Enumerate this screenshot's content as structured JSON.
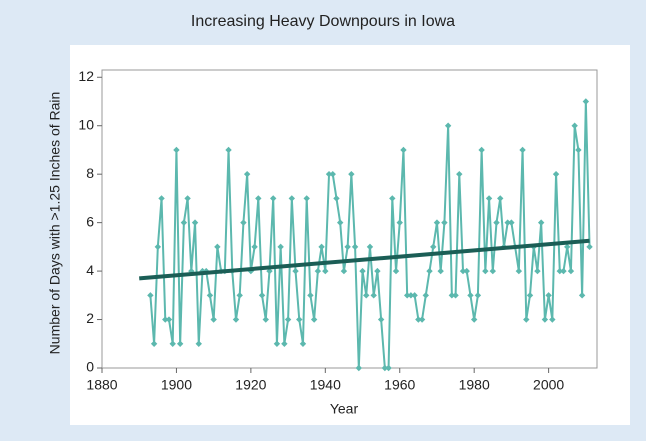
{
  "chart_data": {
    "type": "line",
    "title": "Increasing Heavy Downpours in Iowa",
    "xlabel": "Year",
    "ylabel": "Number of Days with >1.25 Inches of Rain",
    "x": [
      1893,
      1894,
      1895,
      1896,
      1897,
      1898,
      1899,
      1900,
      1901,
      1902,
      1903,
      1904,
      1905,
      1906,
      1907,
      1908,
      1909,
      1910,
      1911,
      1912,
      1913,
      1914,
      1915,
      1916,
      1917,
      1918,
      1919,
      1920,
      1921,
      1922,
      1923,
      1924,
      1925,
      1926,
      1927,
      1928,
      1929,
      1930,
      1931,
      1932,
      1933,
      1934,
      1935,
      1936,
      1937,
      1938,
      1939,
      1940,
      1941,
      1942,
      1943,
      1944,
      1945,
      1946,
      1947,
      1948,
      1949,
      1950,
      1951,
      1952,
      1953,
      1954,
      1955,
      1956,
      1957,
      1958,
      1959,
      1960,
      1961,
      1962,
      1963,
      1964,
      1965,
      1966,
      1967,
      1968,
      1969,
      1970,
      1971,
      1972,
      1973,
      1974,
      1975,
      1976,
      1977,
      1978,
      1979,
      1980,
      1981,
      1982,
      1983,
      1984,
      1985,
      1986,
      1987,
      1988,
      1989,
      1990,
      1991,
      1992,
      1993,
      1994,
      1995,
      1996,
      1997,
      1998,
      1999,
      2000,
      2001,
      2002,
      2003,
      2004,
      2005,
      2006,
      2007,
      2008,
      2009,
      2010,
      2011
    ],
    "series": [
      {
        "color": "#5cb8ae",
        "values": [
          3,
          1,
          5,
          7,
          2,
          2,
          1,
          9,
          1,
          6,
          7,
          4,
          6,
          1,
          4,
          4,
          3,
          2,
          5,
          4,
          4,
          9,
          4,
          2,
          3,
          6,
          8,
          4,
          5,
          7,
          3,
          2,
          4,
          7,
          1,
          5,
          1,
          2,
          7,
          4,
          2,
          1,
          7,
          3,
          2,
          4,
          5,
          4,
          8,
          8,
          7,
          6,
          4,
          5,
          8,
          5,
          0,
          4,
          3,
          5,
          3,
          4,
          2,
          0,
          0,
          7,
          4,
          6,
          9,
          3,
          3,
          3,
          2,
          2,
          3,
          4,
          5,
          6,
          4,
          6,
          10,
          3,
          3,
          8,
          4,
          4,
          3,
          2,
          3,
          9,
          4,
          7,
          4,
          6,
          7,
          5,
          6,
          6,
          5,
          4,
          9,
          2,
          3,
          5,
          4,
          6,
          2,
          3,
          2,
          8,
          4,
          4,
          5,
          4,
          10,
          9,
          3,
          11,
          5
        ]
      }
    ],
    "trend": {
      "color": "#1b5e56",
      "x": [
        1890,
        2011
      ],
      "values": [
        3.7,
        5.25
      ]
    },
    "xlim": [
      1880,
      2013
    ],
    "xticks": [
      1880,
      1900,
      1920,
      1940,
      1960,
      1980,
      2000
    ],
    "ylim": [
      0,
      12.3
    ],
    "yticks": [
      0,
      2,
      4,
      6,
      8,
      10,
      12
    ]
  }
}
